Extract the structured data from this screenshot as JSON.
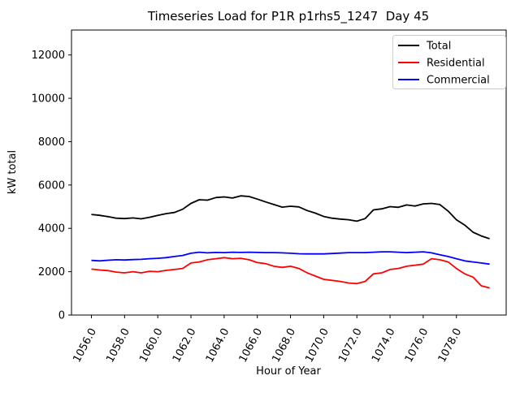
{
  "chart_data": {
    "type": "line",
    "title": "Timeseries Load for P1R p1rhs5_1247  Day 45",
    "xlabel": "Hour of Year",
    "ylabel": "kW total",
    "xlim": [
      1054.8,
      1081.0
    ],
    "ylim": [
      0,
      13150
    ],
    "grid": false,
    "legend_position": "upper right",
    "legend_edge_color": "#cccccc",
    "axis_color": "#000000",
    "xticks": [
      1056,
      1058,
      1060,
      1062,
      1064,
      1066,
      1068,
      1070,
      1072,
      1074,
      1076,
      1078
    ],
    "xtick_labels": [
      "1056.0",
      "1058.0",
      "1060.0",
      "1062.0",
      "1064.0",
      "1066.0",
      "1068.0",
      "1070.0",
      "1072.0",
      "1074.0",
      "1076.0",
      "1078.0"
    ],
    "yticks": [
      0,
      2000,
      4000,
      6000,
      8000,
      10000,
      12000
    ],
    "ytick_labels": [
      "0",
      "2000",
      "4000",
      "6000",
      "8000",
      "10000",
      "12000"
    ],
    "x": [
      1056,
      1056.5,
      1057,
      1057.5,
      1058,
      1058.5,
      1059,
      1059.5,
      1060,
      1060.5,
      1061,
      1061.5,
      1062,
      1062.5,
      1063,
      1063.5,
      1064,
      1064.5,
      1065,
      1065.5,
      1066,
      1066.5,
      1067,
      1067.5,
      1068,
      1068.5,
      1069,
      1069.5,
      1070,
      1070.5,
      1071,
      1071.5,
      1072,
      1072.5,
      1073,
      1073.5,
      1074,
      1074.5,
      1075,
      1075.5,
      1076,
      1076.5,
      1077,
      1077.5,
      1078,
      1078.5,
      1079,
      1079.5,
      1080
    ],
    "series": [
      {
        "name": "Total",
        "color": "#000000",
        "values": [
          4640,
          4600,
          4540,
          4470,
          4450,
          4480,
          4440,
          4510,
          4600,
          4680,
          4730,
          4880,
          5150,
          5320,
          5300,
          5420,
          5450,
          5400,
          5500,
          5470,
          5350,
          5220,
          5100,
          4980,
          5020,
          4990,
          4820,
          4700,
          4550,
          4470,
          4430,
          4400,
          4330,
          4450,
          4850,
          4900,
          5000,
          4970,
          5080,
          5030,
          5130,
          5150,
          5100,
          4800,
          4400,
          4150,
          3820,
          3650,
          3520
        ]
      },
      {
        "name": "Residential",
        "color": "#ff0000",
        "values": [
          2120,
          2080,
          2050,
          1980,
          1950,
          2000,
          1950,
          2020,
          2000,
          2060,
          2100,
          2150,
          2400,
          2450,
          2550,
          2600,
          2650,
          2600,
          2620,
          2550,
          2420,
          2370,
          2250,
          2200,
          2250,
          2150,
          1950,
          1800,
          1650,
          1600,
          1550,
          1480,
          1450,
          1550,
          1900,
          1950,
          2100,
          2150,
          2250,
          2300,
          2350,
          2600,
          2550,
          2450,
          2150,
          1900,
          1750,
          1350,
          1250
        ]
      },
      {
        "name": "Commercial",
        "color": "#0000ff",
        "values": [
          2520,
          2500,
          2530,
          2550,
          2540,
          2560,
          2570,
          2600,
          2620,
          2650,
          2700,
          2750,
          2850,
          2900,
          2870,
          2890,
          2880,
          2900,
          2890,
          2900,
          2890,
          2880,
          2880,
          2870,
          2850,
          2830,
          2820,
          2820,
          2820,
          2840,
          2860,
          2880,
          2880,
          2880,
          2900,
          2920,
          2920,
          2900,
          2880,
          2900,
          2920,
          2870,
          2780,
          2700,
          2600,
          2500,
          2450,
          2400,
          2350
        ]
      }
    ]
  }
}
